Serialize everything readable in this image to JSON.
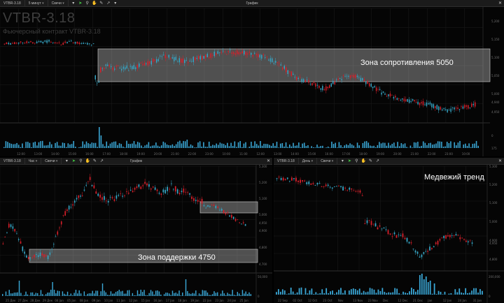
{
  "colors": {
    "bull": "#36a5c4",
    "bear": "#d61f2a",
    "zone_fill": "rgba(235,235,235,0.33)",
    "zone_stroke": "#cfcfcf",
    "volume": "#3aa7d6",
    "accent_tool": "#46d046"
  },
  "icons": [
    "cursor-icon",
    "crosshair-icon",
    "zoom-icon",
    "hand-icon",
    "pencil-icon",
    "trendline-icon",
    "chevron-down-icon",
    "close-icon"
  ],
  "top": {
    "toolbar": {
      "symbol": "VTBR-3.18",
      "interval": "5 минут",
      "type": "Свечи",
      "title": "График",
      "close": "✕"
    },
    "watermark": {
      "title": "VTBR-3.18",
      "subtitle": "Фьючерсный контракт VTBR-3.18"
    },
    "zone_label": "Зона сопротивления 5050",
    "price_ticks": [
      "5,200",
      "5,150",
      "5,100",
      "5,050",
      "5,000",
      "4,950"
    ],
    "last_price": "4,940",
    "vol_ticks": [
      "0",
      "175"
    ],
    "time_ticks": [
      "12:00",
      "13:00",
      "14:00",
      "15:00",
      "16:00",
      "17:00",
      "18:00",
      "19:00",
      "20:00",
      "21:00",
      "22:00",
      "23:00",
      "10:00",
      "11:00",
      "12:00",
      "13:00",
      "14:00",
      "15:00",
      "16:00",
      "17:00",
      "18:00",
      "19:00",
      "20:00",
      "21:00",
      "22:00",
      "23:00",
      "10:00"
    ]
  },
  "bottom_left": {
    "toolbar": {
      "symbol": "VTBR-3.18",
      "interval": "Час",
      "type": "Свечи",
      "title": "График",
      "close": "✕"
    },
    "zone_label": "Зона поддержки 4750",
    "price_ticks": [
      "5,300",
      "5,200",
      "5,100",
      "5,000",
      "4,900",
      "4,800",
      "4,700"
    ],
    "last_price": "4,950",
    "vol_ticks": [
      "50,000",
      "0"
    ],
    "time_ticks": [
      "25 Дек",
      "27 Дек",
      "28 Дек",
      "29 Дек",
      "04 Jan",
      "05 Jan",
      "08 Jan",
      "09 Jan",
      "10 Jan",
      "11 Jan",
      "12 Jan",
      "15 Jan",
      "16 Jan",
      "17 Jan",
      "18 Jan",
      "19 Jan",
      "22 Jan",
      "23 Jan",
      "24 Jan",
      "25 Jan"
    ]
  },
  "bottom_right": {
    "toolbar": {
      "symbol": "VTBR-3.18",
      "interval": "День",
      "type": "Свечи",
      "title": "График",
      "close": "✕"
    },
    "trend_label": "Медвежий тренд",
    "price_ticks": [
      "5,300",
      "5,200",
      "5,100",
      "5,000",
      "4,900",
      "4,800"
    ],
    "last_price": "4,950",
    "vol_ticks": [
      "200,000",
      "0"
    ],
    "time_ticks": [
      "22 Sep",
      "02 Oct",
      "12 Oct",
      "23 Oct",
      "Nov",
      "13 Nov",
      "23 Nov",
      "Dec",
      "12 Dec",
      "21 Dec",
      "Jan",
      "12 Jan",
      "24 Jan",
      "31 Jan"
    ]
  }
}
